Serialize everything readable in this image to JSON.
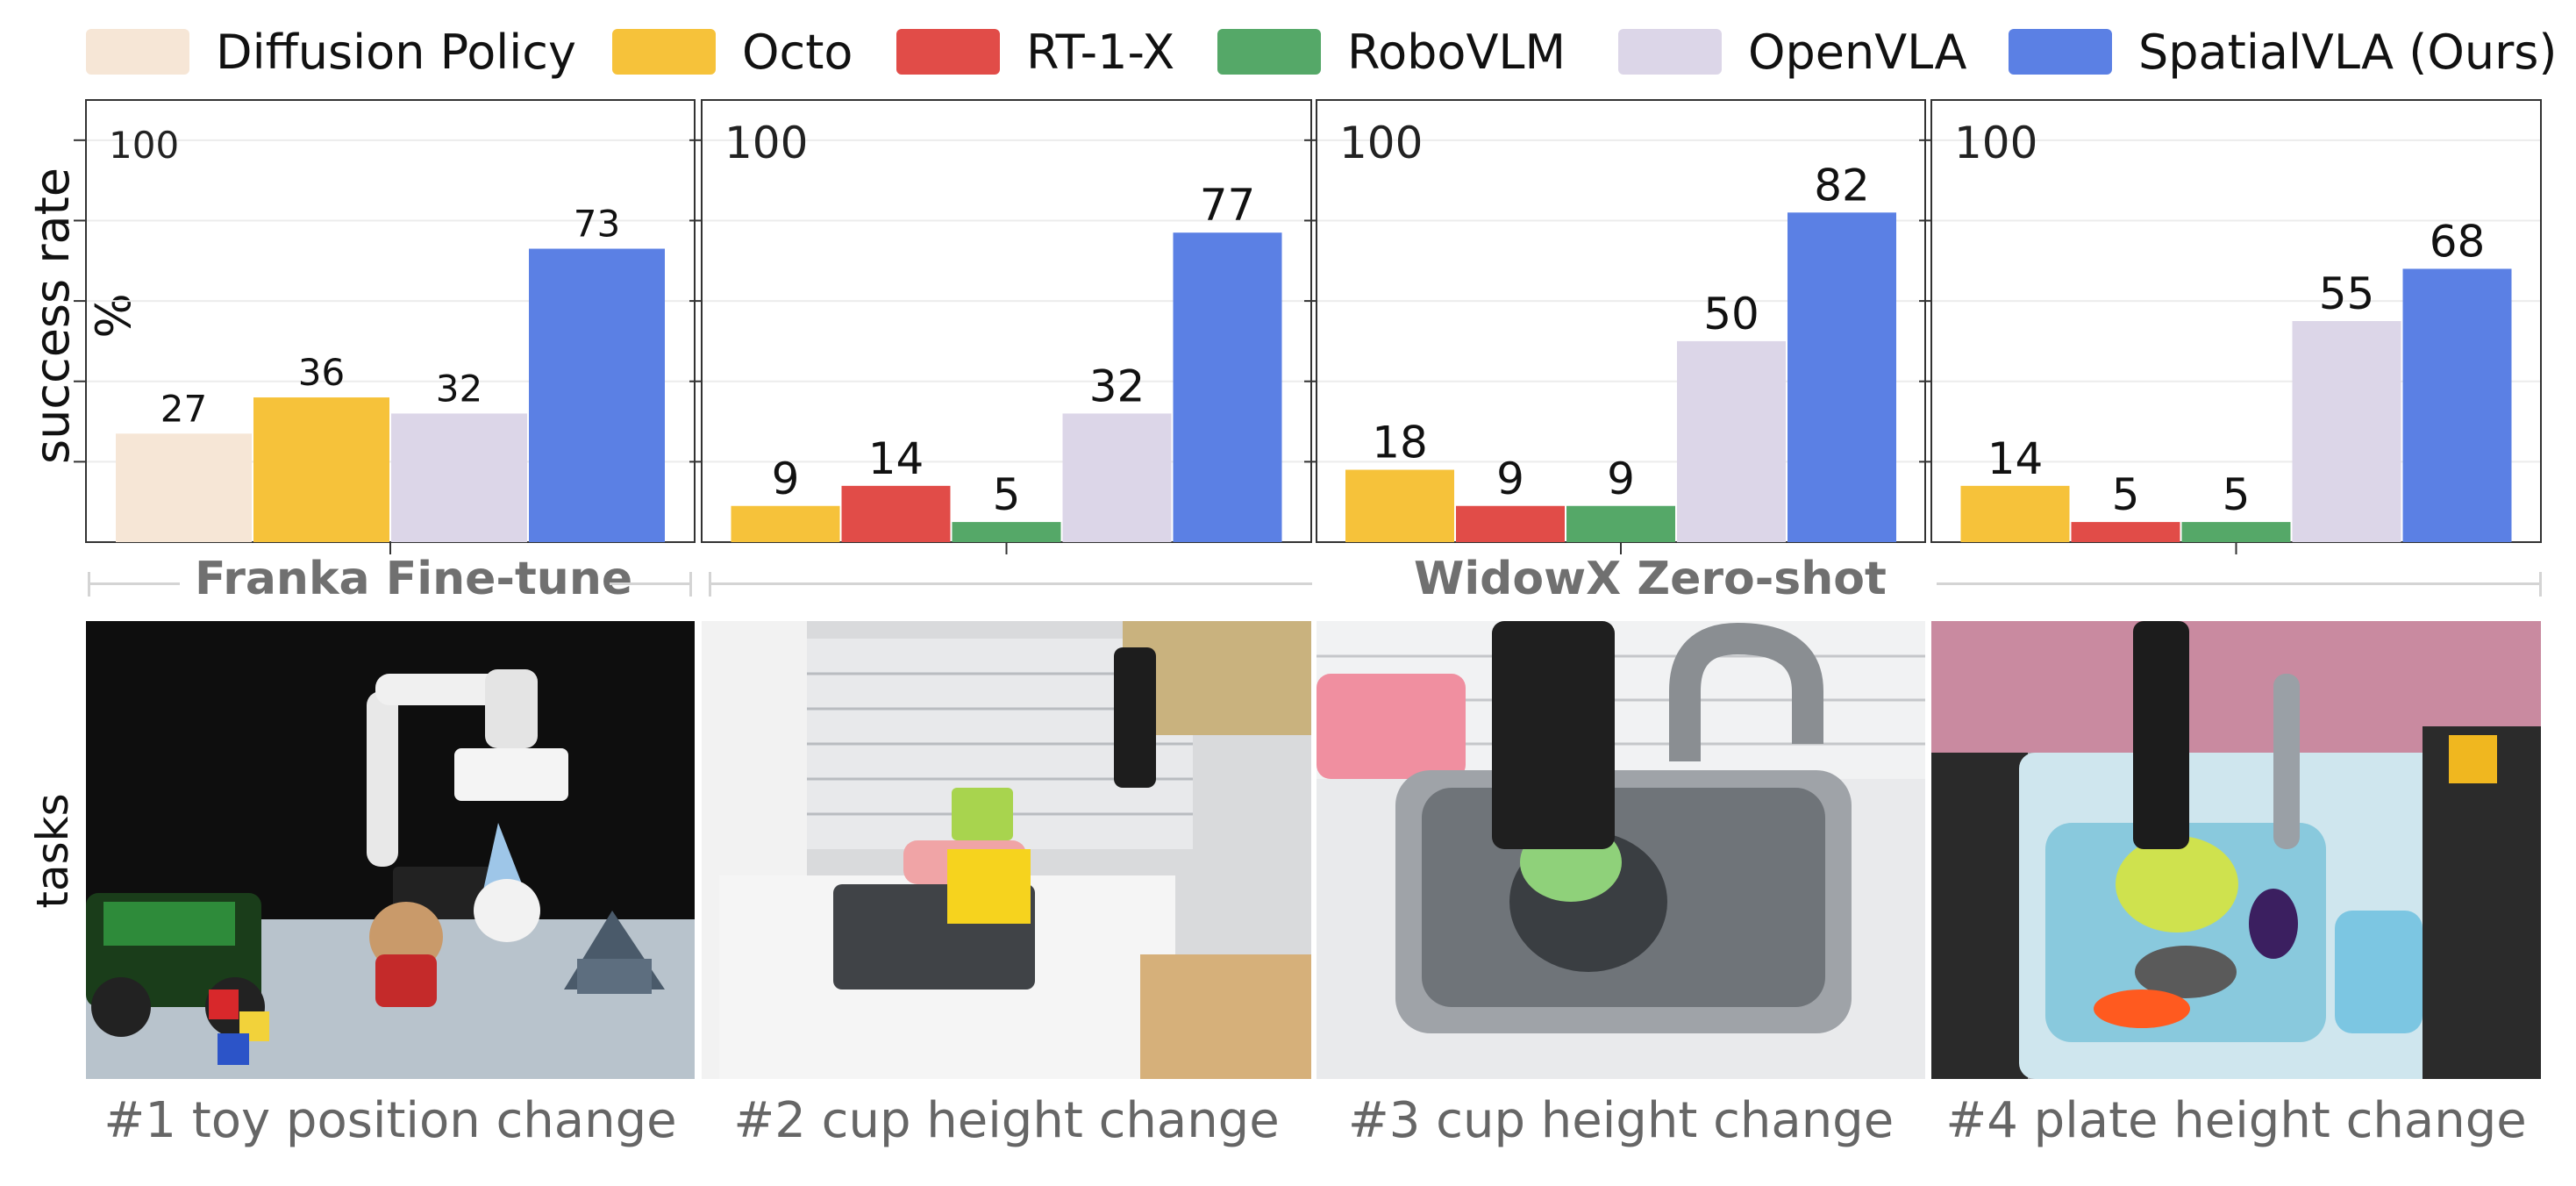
{
  "legend": [
    {
      "label": "Diffusion Policy",
      "color": "#f6e6d6"
    },
    {
      "label": "Octo",
      "color": "#f6c23a"
    },
    {
      "label": "RT-1-X",
      "color": "#e14c48"
    },
    {
      "label": "RoboVLM",
      "color": "#55a868"
    },
    {
      "label": "OpenVLA",
      "color": "#dcd6e8"
    },
    {
      "label": "SpatialVLA (Ours)",
      "color": "#5b80e4"
    }
  ],
  "ylabel": "success rate %",
  "tasks_label": "tasks",
  "groups": [
    "Franka Fine-tune",
    "WidowX Zero-shot"
  ],
  "captions": [
    "#1 toy position change",
    "#2 cup height change",
    "#3 cup height change",
    "#4 plate height change"
  ],
  "chart_data": [
    {
      "type": "bar",
      "ylim": [
        0,
        110
      ],
      "ymax_label": "100",
      "series": [
        {
          "name": "Diffusion Policy",
          "values": [
            27
          ]
        },
        {
          "name": "Octo",
          "values": [
            36
          ]
        },
        {
          "name": "OpenVLA",
          "values": [
            32
          ]
        },
        {
          "name": "SpatialVLA (Ours)",
          "values": [
            73
          ]
        }
      ]
    },
    {
      "type": "bar",
      "ylim": [
        0,
        110
      ],
      "ymax_label": "100",
      "series": [
        {
          "name": "Octo",
          "values": [
            9
          ]
        },
        {
          "name": "RT-1-X",
          "values": [
            14
          ]
        },
        {
          "name": "RoboVLM",
          "values": [
            5
          ]
        },
        {
          "name": "OpenVLA",
          "values": [
            32
          ]
        },
        {
          "name": "SpatialVLA (Ours)",
          "values": [
            77
          ]
        }
      ]
    },
    {
      "type": "bar",
      "ylim": [
        0,
        110
      ],
      "ymax_label": "100",
      "series": [
        {
          "name": "Octo",
          "values": [
            18
          ]
        },
        {
          "name": "RT-1-X",
          "values": [
            9
          ]
        },
        {
          "name": "RoboVLM",
          "values": [
            9
          ]
        },
        {
          "name": "OpenVLA",
          "values": [
            50
          ]
        },
        {
          "name": "SpatialVLA (Ours)",
          "values": [
            82
          ]
        }
      ]
    },
    {
      "type": "bar",
      "ylim": [
        0,
        110
      ],
      "ymax_label": "100",
      "series": [
        {
          "name": "Octo",
          "values": [
            14
          ]
        },
        {
          "name": "RT-1-X",
          "values": [
            5
          ]
        },
        {
          "name": "RoboVLM",
          "values": [
            5
          ]
        },
        {
          "name": "OpenVLA",
          "values": [
            55
          ]
        },
        {
          "name": "SpatialVLA (Ours)",
          "values": [
            68
          ]
        }
      ]
    }
  ]
}
